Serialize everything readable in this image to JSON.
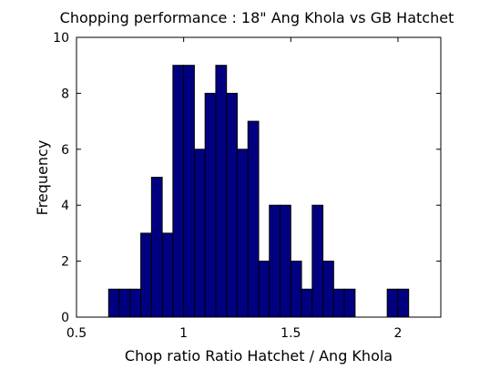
{
  "chart_data": {
    "type": "bar",
    "title": "Chopping performance : 18\" Ang Khola vs GB Hatchet",
    "xlabel": "Chop ratio Ratio Hatchet / Ang Khola",
    "ylabel": "Frequency",
    "xlim": [
      0.5,
      2.2
    ],
    "ylim": [
      0,
      10
    ],
    "xticks": [
      "0.5",
      "1",
      "1.5",
      "2"
    ],
    "yticks": [
      "0",
      "2",
      "4",
      "6",
      "8",
      "10"
    ],
    "grid": false,
    "bar_color": "#000080",
    "bar_edge_color": "#000000",
    "bin_width": 0.05,
    "bins": [
      {
        "x": 0.675,
        "value": 1
      },
      {
        "x": 0.725,
        "value": 1
      },
      {
        "x": 0.775,
        "value": 1
      },
      {
        "x": 0.825,
        "value": 3
      },
      {
        "x": 0.875,
        "value": 5
      },
      {
        "x": 0.925,
        "value": 3
      },
      {
        "x": 0.975,
        "value": 9
      },
      {
        "x": 1.025,
        "value": 9
      },
      {
        "x": 1.075,
        "value": 6
      },
      {
        "x": 1.125,
        "value": 8
      },
      {
        "x": 1.175,
        "value": 9
      },
      {
        "x": 1.225,
        "value": 8
      },
      {
        "x": 1.275,
        "value": 6
      },
      {
        "x": 1.325,
        "value": 7
      },
      {
        "x": 1.375,
        "value": 2
      },
      {
        "x": 1.425,
        "value": 4
      },
      {
        "x": 1.475,
        "value": 4
      },
      {
        "x": 1.525,
        "value": 2
      },
      {
        "x": 1.575,
        "value": 1
      },
      {
        "x": 1.625,
        "value": 4
      },
      {
        "x": 1.675,
        "value": 2
      },
      {
        "x": 1.725,
        "value": 1
      },
      {
        "x": 1.775,
        "value": 1
      },
      {
        "x": 1.975,
        "value": 1
      },
      {
        "x": 2.025,
        "value": 1
      }
    ]
  }
}
